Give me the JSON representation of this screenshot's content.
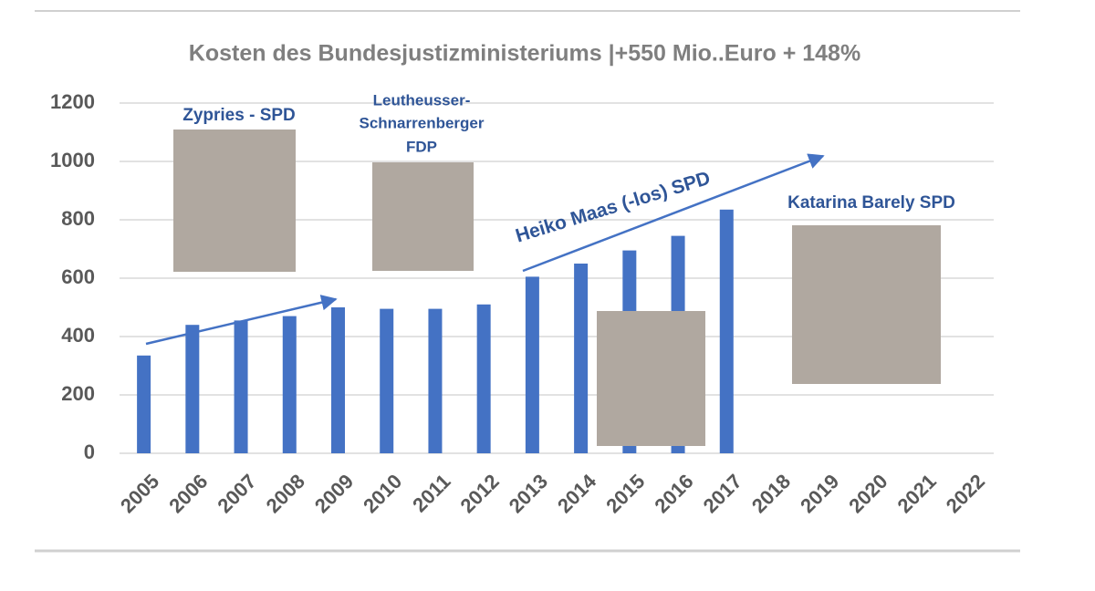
{
  "chart_data": {
    "type": "bar",
    "title": "Kosten des Bundesjustizministeriums |+550 Mio..Euro + 148%",
    "categories": [
      "2005",
      "2006",
      "2007",
      "2008",
      "2009",
      "2010",
      "2011",
      "2012",
      "2013",
      "2014",
      "2015",
      "2016",
      "2017",
      "2018",
      "2019",
      "2020",
      "2021",
      "2022"
    ],
    "values": [
      335,
      440,
      455,
      470,
      500,
      495,
      495,
      510,
      605,
      650,
      695,
      745,
      835,
      null,
      null,
      null,
      null,
      null
    ],
    "color": "#4472c4",
    "ylim": [
      0,
      1200
    ],
    "yticks": [
      0,
      200,
      400,
      600,
      800,
      1000,
      1200
    ],
    "grid": true,
    "annotations": [
      "Zypries - SPD",
      "Leutheusser-",
      "Schnarrenberger",
      "FDP",
      "Heiko Maas (-los) SPD",
      "Katarina Barely SPD"
    ]
  }
}
